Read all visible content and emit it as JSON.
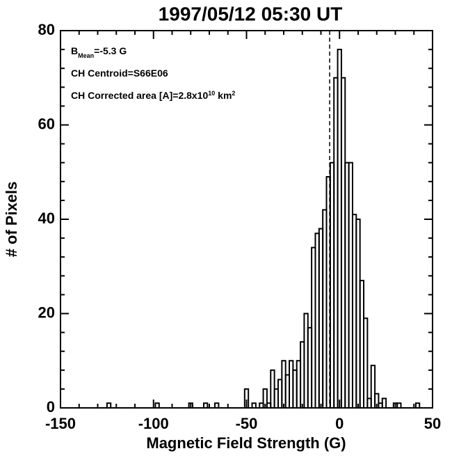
{
  "chart_data": {
    "type": "histogram",
    "title": "1997/05/12 05:30 UT",
    "x_label": "Magnetic Field Strength (G)",
    "y_label": "# of Pixels",
    "annotations": [
      [
        "B",
        "Mean",
        "=-5.3 G"
      ],
      [
        "CH Centroid=S66E06"
      ],
      [
        "CH Corrected area [A]=2.8x10",
        "10",
        " km",
        "2"
      ]
    ],
    "mean_line": -5.3,
    "bins": [
      -125,
      -123,
      -121,
      -119,
      -117,
      -115,
      -113,
      -111,
      -109,
      -107,
      -105,
      -103,
      -101,
      -99,
      -97,
      -95,
      -93,
      -91,
      -89,
      -87,
      -85,
      -83,
      -81,
      -79,
      -77,
      -75,
      -73,
      -71,
      -69,
      -67,
      -65,
      -63,
      -61,
      -59,
      -57,
      -55,
      -53,
      -51,
      -49,
      -47,
      -45,
      -43,
      -41,
      -39,
      -37,
      -35,
      -33,
      -31,
      -29,
      -27,
      -25,
      -23,
      -21,
      -19,
      -17,
      -15,
      -13,
      -11,
      -9,
      -7,
      -5,
      -3,
      -1,
      1,
      3,
      5,
      7,
      9,
      11,
      13,
      15,
      17,
      19,
      21,
      23,
      25,
      27,
      29,
      31,
      33,
      35,
      37,
      39,
      41,
      43
    ],
    "counts": [
      1,
      0,
      0,
      0,
      0,
      0,
      0,
      0,
      0,
      0,
      0,
      0,
      0,
      1,
      0,
      0,
      0,
      0,
      0,
      0,
      0,
      0,
      1,
      0,
      0,
      0,
      1,
      0,
      0,
      1,
      0,
      0,
      0,
      0,
      0,
      0,
      0,
      4,
      0,
      1,
      0,
      1,
      4,
      1,
      8,
      4,
      6,
      10,
      7,
      10,
      8,
      10,
      14,
      20,
      17,
      34,
      37,
      38,
      42,
      49,
      52,
      70,
      76,
      70,
      52,
      52,
      41,
      40,
      27,
      19,
      2,
      9,
      3,
      1,
      2,
      0,
      0,
      1,
      1,
      0,
      0,
      0,
      0,
      1
    ],
    "color": "#000000",
    "xlim": [
      -150,
      50
    ],
    "xticks": [
      -150,
      -100,
      -50,
      0,
      50
    ],
    "ylim": [
      0,
      80
    ],
    "yticks": [
      0,
      20,
      40,
      60,
      80
    ]
  }
}
